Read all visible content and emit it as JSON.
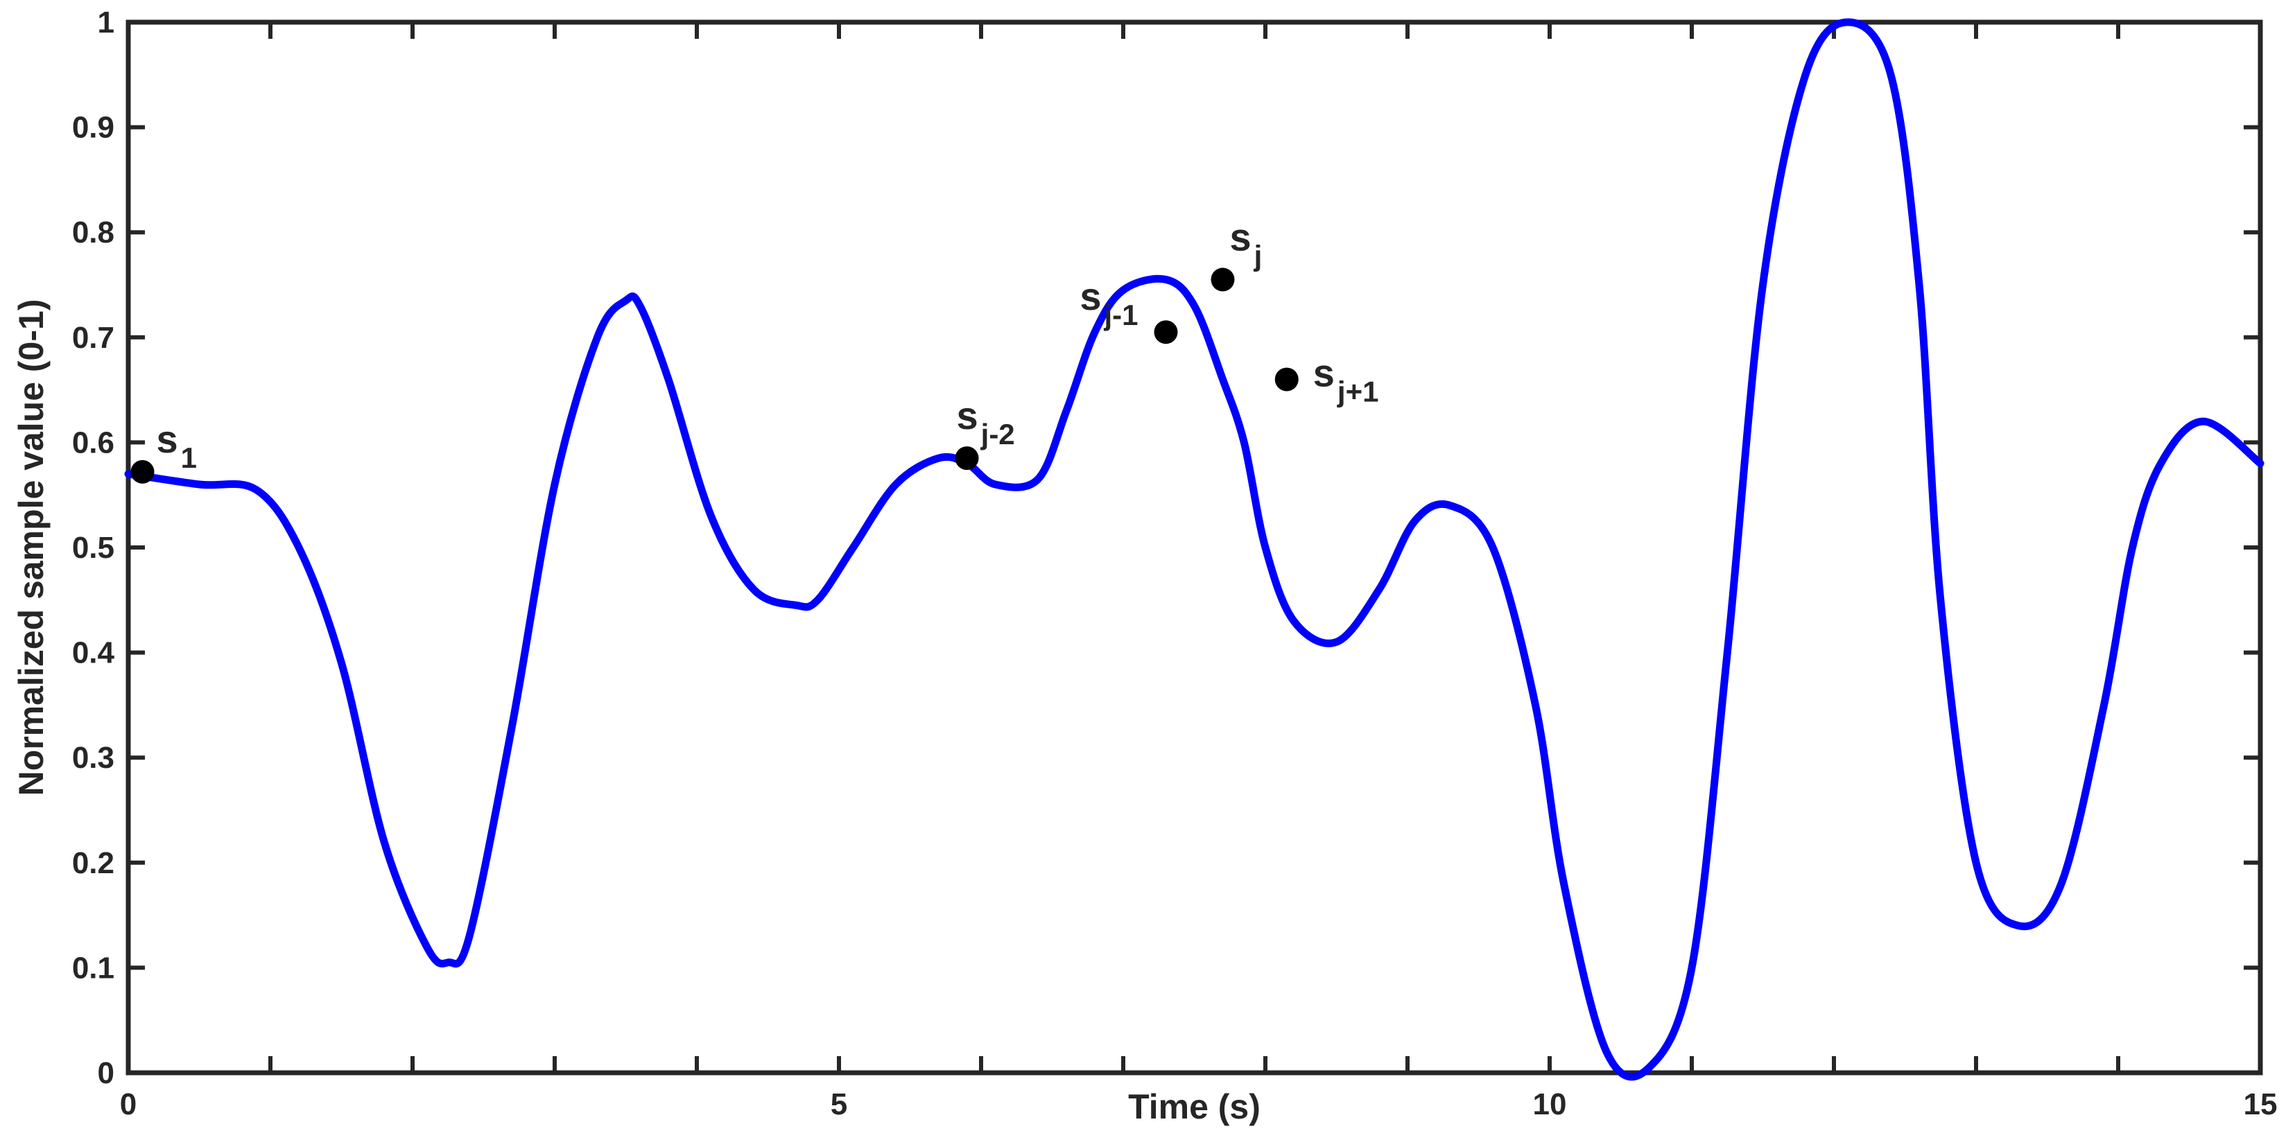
{
  "chart_data": {
    "type": "line",
    "title": "",
    "xlabel": "Time (s)",
    "ylabel": "Normalized sample value (0-1)",
    "xlim": [
      0,
      15
    ],
    "ylim": [
      0,
      1
    ],
    "xticks": [
      0,
      1,
      2,
      3,
      4,
      5,
      6,
      7,
      8,
      9,
      10,
      11,
      12,
      13,
      14,
      15
    ],
    "xtick_labels": [
      "0",
      "",
      "",
      "",
      "",
      "5",
      "",
      "",
      "",
      "",
      "10",
      "",
      "",
      "",
      "",
      "15"
    ],
    "yticks": [
      0,
      0.1,
      0.2,
      0.3,
      0.4,
      0.5,
      0.6,
      0.7,
      0.8,
      0.9,
      1
    ],
    "ytick_labels": [
      "0",
      "0.1",
      "0.2",
      "0.3",
      "0.4",
      "0.5",
      "0.6",
      "0.7",
      "0.8",
      "0.9",
      "1"
    ],
    "grid": false,
    "line_color": "#0000ff",
    "marker_color": "#000000",
    "series": [
      {
        "x": [
          0,
          0.5,
          0.9,
          1.2,
          1.5,
          1.8,
          2.1,
          2.25,
          2.4,
          2.7,
          3.0,
          3.3,
          3.5,
          3.6,
          3.8,
          4.1,
          4.4,
          4.7,
          4.85,
          5.1,
          5.4,
          5.7,
          5.9,
          6.1,
          6.4,
          6.6,
          6.8,
          7.0,
          7.3,
          7.5,
          7.7,
          7.85,
          8.0,
          8.2,
          8.5,
          8.8,
          9.05,
          9.3,
          9.6,
          9.9,
          10.1,
          10.4,
          10.7,
          11.0,
          11.25,
          11.5,
          11.8,
          12.1,
          12.4,
          12.6,
          12.75,
          13.0,
          13.3,
          13.6,
          13.9,
          14.1,
          14.3,
          14.6,
          15.0
        ],
        "y": [
          0.57,
          0.56,
          0.555,
          0.5,
          0.39,
          0.22,
          0.12,
          0.105,
          0.13,
          0.33,
          0.56,
          0.7,
          0.735,
          0.73,
          0.66,
          0.53,
          0.46,
          0.445,
          0.45,
          0.5,
          0.56,
          0.585,
          0.58,
          0.56,
          0.565,
          0.63,
          0.705,
          0.745,
          0.755,
          0.73,
          0.66,
          0.6,
          0.5,
          0.43,
          0.41,
          0.46,
          0.525,
          0.54,
          0.5,
          0.35,
          0.18,
          0.02,
          0.005,
          0.1,
          0.4,
          0.75,
          0.95,
          1.0,
          0.95,
          0.75,
          0.45,
          0.2,
          0.14,
          0.18,
          0.35,
          0.5,
          0.58,
          0.62,
          0.58
        ]
      }
    ],
    "markers": [
      {
        "x": 0.1,
        "y": 0.572,
        "label": "s",
        "sub": "1"
      },
      {
        "x": 5.9,
        "y": 0.585,
        "label": "s",
        "sub": "j-2"
      },
      {
        "x": 7.3,
        "y": 0.705,
        "label": "s",
        "sub": "j-1"
      },
      {
        "x": 7.7,
        "y": 0.755,
        "label": "s",
        "sub": "j"
      },
      {
        "x": 8.15,
        "y": 0.66,
        "label": "s",
        "sub": "j+1"
      }
    ]
  }
}
